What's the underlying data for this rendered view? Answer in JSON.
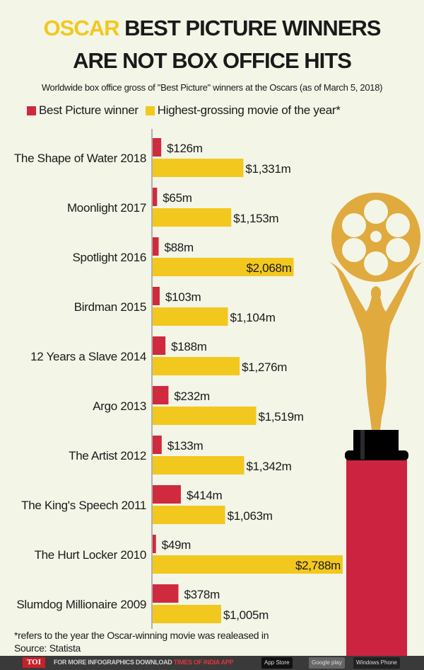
{
  "title": {
    "highlight": "OSCAR",
    "line1_rest": "BEST PICTURE WINNERS",
    "line2": "ARE NOT BOX OFFICE HITS"
  },
  "subtitle": "Worldwide box office gross of \"Best Picture\" winners at the Oscars (as of March 5, 2018)",
  "colors": {
    "winner": "#cf2a3e",
    "highest": "#f2c81f",
    "background": "#f3f5e7",
    "statue": "#e0aa3e"
  },
  "chart_data": {
    "type": "bar",
    "orientation": "horizontal",
    "categories": [
      "The Shape of Water 2018",
      "Moonlight 2017",
      "Spotlight 2016",
      "Birdman 2015",
      "12 Years a Slave 2014",
      "Argo 2013",
      "The Artist 2012",
      "The King's Speech 2011",
      "The Hurt Locker 2010",
      "Slumdog Millionaire 2009"
    ],
    "series": [
      {
        "name": "Best Picture winner",
        "values": [
          126,
          65,
          88,
          103,
          188,
          232,
          133,
          414,
          49,
          378
        ],
        "labels": [
          "$126m",
          "$65m",
          "$88m",
          "$103m",
          "$188m",
          "$232m",
          "$133m",
          "$414m",
          "$49m",
          "$378m"
        ]
      },
      {
        "name": "Highest-grossing movie of the year*",
        "values": [
          1331,
          1153,
          2068,
          1104,
          1276,
          1519,
          1342,
          1063,
          2788,
          1005
        ],
        "labels": [
          "$1,331m",
          "$1,153m",
          "$2,068m",
          "$1,104m",
          "$1,276m",
          "$1,519m",
          "$1,342m",
          "$1,063m",
          "$2,788m",
          "$1,005m"
        ]
      }
    ],
    "unit": "$m",
    "legend": "top"
  },
  "footnote": "*refers to the year the Oscar-winning movie was realeased in",
  "source": "Source: Statista",
  "footer": {
    "logo": "TOI",
    "text": "FOR MORE  INFOGRAPHICS DOWNLOAD",
    "app": "TIMES OF INDIA  APP",
    "stores": [
      "App Store",
      "Google play",
      "Windows Phone"
    ]
  }
}
